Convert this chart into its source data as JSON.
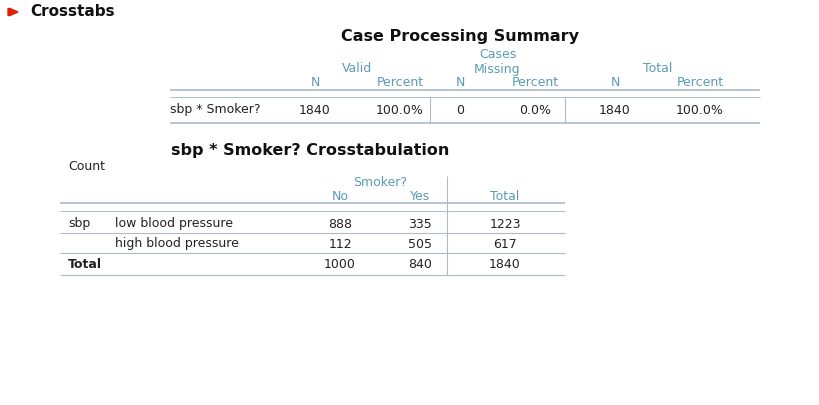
{
  "title_crosstabs": "Crosstabs",
  "title_cps": "Case Processing Summary",
  "title_crosstab": "sbp * Smoker? Crosstabulation",
  "header_color": "#5b9ab5",
  "bg_color": "#ffffff",
  "row_label_color": "#222222",
  "arrow_color": "#dd2200",
  "line_color": "#aabbcc",
  "table1": {
    "group_headers": [
      "Valid",
      "Missing",
      "Total"
    ],
    "cases_label": "Cases",
    "row_label": "sbp * Smoker?",
    "n_cols": [
      "N",
      "N",
      "N"
    ],
    "pct_cols": [
      "Percent",
      "Percent",
      "Percent"
    ],
    "data": [
      "1840",
      "100.0%",
      "0",
      "0.0%",
      "1840",
      "100.0%"
    ]
  },
  "table2": {
    "smoker_header": "Smoker?",
    "col_headers": [
      "No",
      "Yes",
      "Total"
    ],
    "count_label": "Count",
    "rows": [
      [
        "sbp",
        "low blood pressure",
        "888",
        "335",
        "1223"
      ],
      [
        "",
        "high blood pressure",
        "112",
        "505",
        "617"
      ],
      [
        "Total",
        "",
        "1000",
        "840",
        "1840"
      ]
    ]
  }
}
